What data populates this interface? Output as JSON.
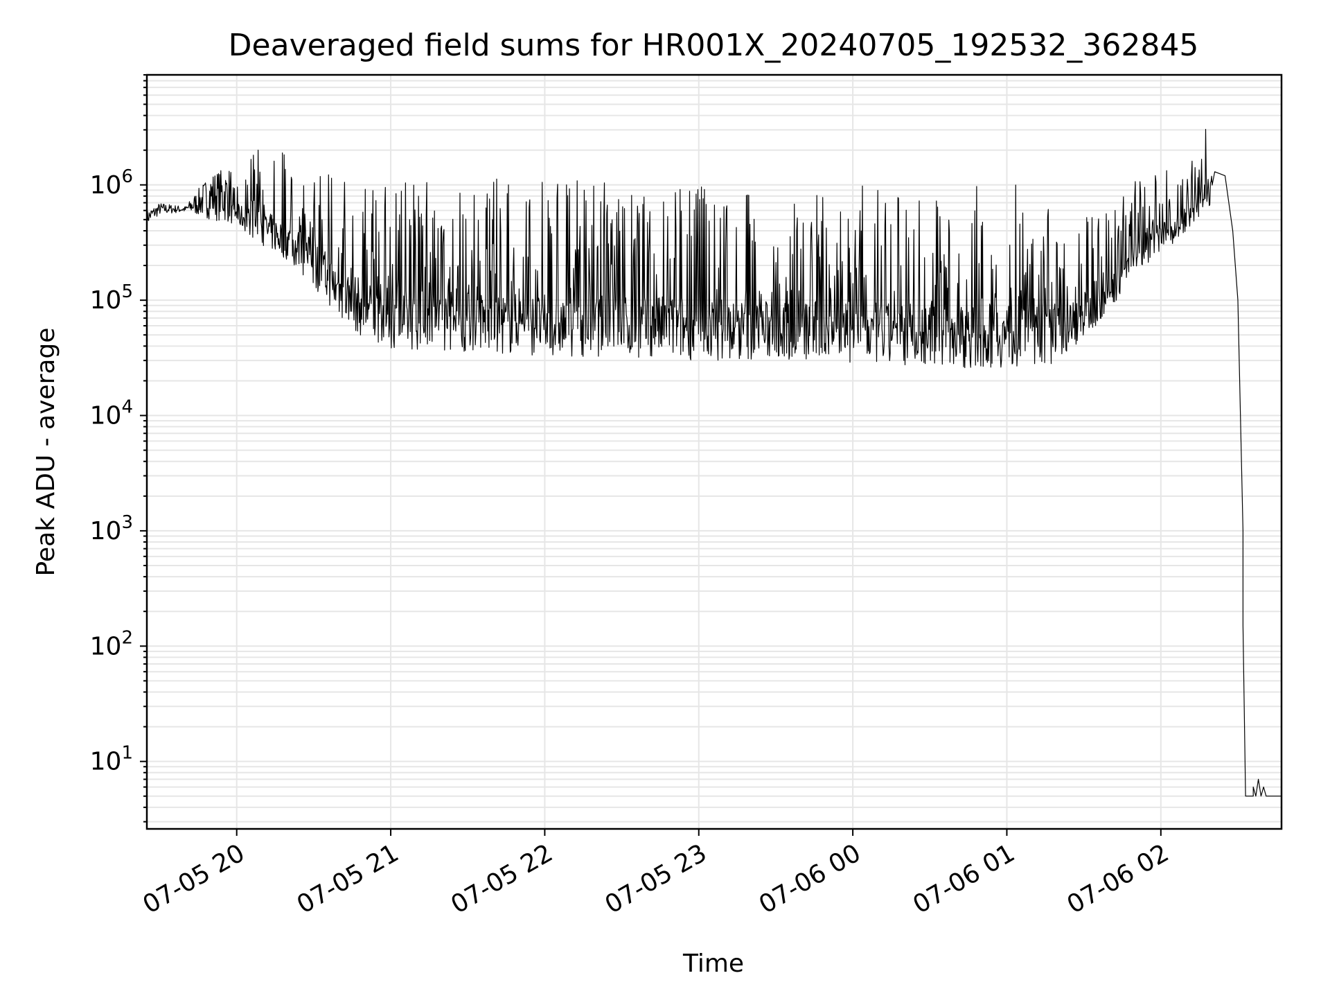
{
  "chart_data": {
    "type": "line",
    "title": "Deaveraged field sums for HR001X_20240705_192532_362845",
    "xlabel": "Time",
    "ylabel": "Peak ADU - average",
    "y_scale": "log",
    "ylim": [
      2.6,
      9000000
    ],
    "xlim": [
      "2024-07-05 19:25",
      "2024-07-06 02:47"
    ],
    "grid": "on (major and minor)",
    "x_ticks": [
      {
        "t": "2024-07-05 20:00",
        "label": "07-05 20"
      },
      {
        "t": "2024-07-05 21:00",
        "label": "07-05 21"
      },
      {
        "t": "2024-07-05 22:00",
        "label": "07-05 22"
      },
      {
        "t": "2024-07-05 23:00",
        "label": "07-05 23"
      },
      {
        "t": "2024-07-06 00:00",
        "label": "07-06 00"
      },
      {
        "t": "2024-07-06 01:00",
        "label": "07-06 01"
      },
      {
        "t": "2024-07-06 02:00",
        "label": "07-06 02"
      }
    ],
    "y_ticks": [
      {
        "value": 10,
        "base": "10",
        "exp": "1"
      },
      {
        "value": 100,
        "base": "10",
        "exp": "2"
      },
      {
        "value": 1000,
        "base": "10",
        "exp": "3"
      },
      {
        "value": 10000,
        "base": "10",
        "exp": "4"
      },
      {
        "value": 100000,
        "base": "10",
        "exp": "5"
      },
      {
        "value": 1000000,
        "base": "10",
        "exp": "6"
      }
    ],
    "line_color": "#000000",
    "envelope": [
      {
        "t": "2024-07-05 19:25",
        "low": 450000,
        "high": 600000
      },
      {
        "t": "2024-07-05 19:30",
        "low": 550000,
        "high": 700000
      },
      {
        "t": "2024-07-05 19:40",
        "low": 580000,
        "high": 650000
      },
      {
        "t": "2024-07-05 19:50",
        "low": 500000,
        "high": 1300000
      },
      {
        "t": "2024-07-05 20:00",
        "low": 450000,
        "high": 1500000
      },
      {
        "t": "2024-07-05 20:10",
        "low": 300000,
        "high": 2200000
      },
      {
        "t": "2024-07-05 20:20",
        "low": 220000,
        "high": 2100000
      },
      {
        "t": "2024-07-05 20:30",
        "low": 130000,
        "high": 2000000
      },
      {
        "t": "2024-07-05 20:40",
        "low": 70000,
        "high": 1500000
      },
      {
        "t": "2024-07-05 20:50",
        "low": 45000,
        "high": 1300000
      },
      {
        "t": "2024-07-05 21:00",
        "low": 38000,
        "high": 1200000
      },
      {
        "t": "2024-07-05 21:30",
        "low": 35000,
        "high": 1200000
      },
      {
        "t": "2024-07-05 22:00",
        "low": 33000,
        "high": 1100000
      },
      {
        "t": "2024-07-05 22:30",
        "low": 32000,
        "high": 1100000
      },
      {
        "t": "2024-07-05 23:00",
        "low": 30000,
        "high": 1200000
      },
      {
        "t": "2024-07-05 23:30",
        "low": 30000,
        "high": 900000
      },
      {
        "t": "2024-07-06 00:00",
        "low": 28000,
        "high": 1000000
      },
      {
        "t": "2024-07-06 00:30",
        "low": 26000,
        "high": 900000
      },
      {
        "t": "2024-07-06 01:00",
        "low": 26000,
        "high": 1100000
      },
      {
        "t": "2024-07-06 01:20",
        "low": 28000,
        "high": 700000
      },
      {
        "t": "2024-07-06 01:40",
        "low": 80000,
        "high": 600000
      },
      {
        "t": "2024-07-06 01:50",
        "low": 180000,
        "high": 1100000
      },
      {
        "t": "2024-07-06 02:00",
        "low": 250000,
        "high": 1400000
      },
      {
        "t": "2024-07-06 02:10",
        "low": 400000,
        "high": 1200000
      },
      {
        "t": "2024-07-06 02:20",
        "low": 700000,
        "high": 5000000
      }
    ],
    "tail": [
      {
        "t": "2024-07-06 02:21",
        "value": 1300000
      },
      {
        "t": "2024-07-06 02:25",
        "value": 1200000
      },
      {
        "t": "2024-07-06 02:28",
        "value": 400000
      },
      {
        "t": "2024-07-06 02:30",
        "value": 100000
      },
      {
        "t": "2024-07-06 02:31",
        "value": 10000
      },
      {
        "t": "2024-07-06 02:32",
        "value": 1000
      },
      {
        "t": "2024-07-06 02:32",
        "value": 150
      },
      {
        "t": "2024-07-06 02:33",
        "value": 5
      },
      {
        "t": "2024-07-06 02:36",
        "value": 5
      },
      {
        "t": "2024-07-06 02:36",
        "value": 6
      },
      {
        "t": "2024-07-06 02:37",
        "value": 5
      },
      {
        "t": "2024-07-06 02:38",
        "value": 7
      },
      {
        "t": "2024-07-06 02:39",
        "value": 5
      },
      {
        "t": "2024-07-06 02:40",
        "value": 6
      },
      {
        "t": "2024-07-06 02:41",
        "value": 5
      },
      {
        "t": "2024-07-06 02:47",
        "value": 5
      }
    ]
  }
}
